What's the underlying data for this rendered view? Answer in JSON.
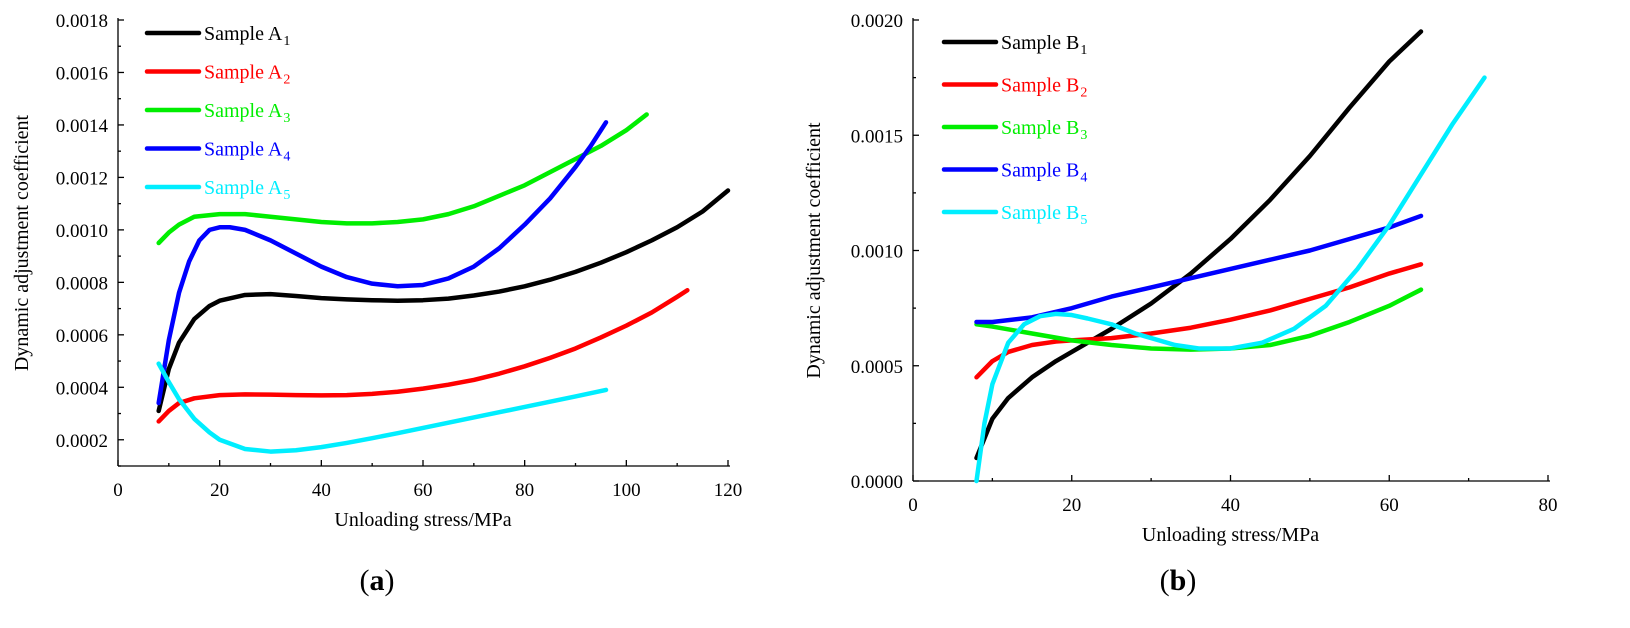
{
  "chart_data": [
    {
      "type": "line",
      "panel_label": "(a)",
      "xlabel": "Unloading stress/MPa",
      "ylabel": "Dynamic adjustment coefficient",
      "xlim": [
        0,
        120
      ],
      "ylim": [
        0.0001,
        0.0018
      ],
      "xticks": [
        0,
        20,
        40,
        60,
        80,
        100,
        120
      ],
      "xtick_labels": [
        "0",
        "20",
        "40",
        "60",
        "80",
        "100",
        "120"
      ],
      "yticks": [
        0.0002,
        0.0004,
        0.0006,
        0.0008,
        0.001,
        0.0012,
        0.0014,
        0.0016,
        0.0018
      ],
      "ytick_labels": [
        "0.0002",
        "0.0004",
        "0.0006",
        "0.0008",
        "0.0010",
        "0.0012",
        "0.0014",
        "0.0016",
        "0.0018"
      ],
      "grid": false,
      "legend_position": "top-left",
      "series": [
        {
          "name": "Sample A",
          "sub": "1",
          "color": "#000000",
          "x": [
            8,
            10,
            12,
            15,
            18,
            20,
            25,
            30,
            35,
            40,
            45,
            50,
            55,
            60,
            65,
            70,
            75,
            80,
            85,
            90,
            95,
            100,
            105,
            110,
            115,
            120
          ],
          "y": [
            0.00031,
            0.00047,
            0.00057,
            0.00066,
            0.00071,
            0.00073,
            0.000752,
            0.000755,
            0.000748,
            0.00074,
            0.000735,
            0.000732,
            0.00073,
            0.000732,
            0.000738,
            0.00075,
            0.000765,
            0.000785,
            0.00081,
            0.00084,
            0.000875,
            0.000915,
            0.00096,
            0.00101,
            0.00107,
            0.00115
          ]
        },
        {
          "name": "Sample A",
          "sub": "2",
          "color": "#ff0000",
          "x": [
            8,
            10,
            12,
            15,
            20,
            25,
            30,
            35,
            40,
            45,
            50,
            55,
            60,
            65,
            70,
            75,
            80,
            85,
            90,
            95,
            100,
            105,
            110,
            112
          ],
          "y": [
            0.00027,
            0.00031,
            0.00034,
            0.000358,
            0.00037,
            0.000373,
            0.000372,
            0.00037,
            0.000369,
            0.00037,
            0.000375,
            0.000383,
            0.000395,
            0.00041,
            0.000428,
            0.000452,
            0.00048,
            0.000512,
            0.000548,
            0.00059,
            0.000635,
            0.000685,
            0.000745,
            0.00077
          ]
        },
        {
          "name": "Sample A",
          "sub": "3",
          "color": "#00ee00",
          "x": [
            8,
            10,
            12,
            15,
            20,
            25,
            30,
            35,
            40,
            45,
            50,
            55,
            60,
            65,
            70,
            75,
            80,
            85,
            90,
            95,
            100,
            104
          ],
          "y": [
            0.00095,
            0.00099,
            0.00102,
            0.00105,
            0.00106,
            0.00106,
            0.00105,
            0.00104,
            0.00103,
            0.001025,
            0.001025,
            0.00103,
            0.00104,
            0.00106,
            0.00109,
            0.00113,
            0.00117,
            0.00122,
            0.00127,
            0.00132,
            0.00138,
            0.00144
          ]
        },
        {
          "name": "Sample A",
          "sub": "4",
          "color": "#0000ff",
          "x": [
            8,
            10,
            12,
            14,
            16,
            18,
            20,
            22,
            25,
            30,
            35,
            40,
            45,
            50,
            55,
            60,
            65,
            70,
            75,
            80,
            85,
            90,
            93,
            96
          ],
          "y": [
            0.00034,
            0.00058,
            0.00076,
            0.00088,
            0.00096,
            0.001,
            0.00101,
            0.00101,
            0.001,
            0.00096,
            0.00091,
            0.00086,
            0.00082,
            0.000795,
            0.000785,
            0.00079,
            0.000815,
            0.00086,
            0.00093,
            0.00102,
            0.00112,
            0.00124,
            0.00132,
            0.00141
          ]
        },
        {
          "name": "Sample A",
          "sub": "5",
          "color": "#00eeff",
          "x": [
            8,
            10,
            12,
            15,
            18,
            20,
            25,
            30,
            35,
            40,
            45,
            50,
            55,
            60,
            65,
            70,
            75,
            80,
            85,
            90,
            96
          ],
          "y": [
            0.00049,
            0.00042,
            0.000355,
            0.00028,
            0.000228,
            0.0002,
            0.000165,
            0.000155,
            0.00016,
            0.000172,
            0.000188,
            0.000206,
            0.000225,
            0.000245,
            0.000265,
            0.000285,
            0.000305,
            0.000325,
            0.000345,
            0.000365,
            0.00039
          ]
        }
      ]
    },
    {
      "type": "line",
      "panel_label": "(b)",
      "xlabel": "Unloading stress/MPa",
      "ylabel": "Dynamic adjustment coefficient",
      "xlim": [
        0,
        80
      ],
      "ylim": [
        0,
        0.002
      ],
      "xticks": [
        0,
        20,
        40,
        60,
        80
      ],
      "xtick_labels": [
        "0",
        "20",
        "40",
        "60",
        "80"
      ],
      "yticks": [
        0,
        0.0005,
        0.001,
        0.0015,
        0.002
      ],
      "ytick_labels": [
        "0.0000",
        "0.0005",
        "0.0010",
        "0.0015",
        "0.0020"
      ],
      "grid": false,
      "legend_position": "top-left",
      "series": [
        {
          "name": "Sample B",
          "sub": "1",
          "color": "#000000",
          "x": [
            8,
            10,
            12,
            15,
            18,
            20,
            25,
            30,
            35,
            40,
            45,
            50,
            55,
            60,
            64
          ],
          "y": [
            0.0001,
            0.00027,
            0.00036,
            0.00045,
            0.00052,
            0.00056,
            0.00066,
            0.00077,
            0.0009,
            0.00105,
            0.00122,
            0.00141,
            0.00162,
            0.00182,
            0.00195
          ]
        },
        {
          "name": "Sample B",
          "sub": "2",
          "color": "#ff0000",
          "x": [
            8,
            10,
            12,
            15,
            18,
            20,
            25,
            30,
            35,
            40,
            45,
            50,
            55,
            60,
            64
          ],
          "y": [
            0.00045,
            0.00052,
            0.00056,
            0.00059,
            0.000605,
            0.00061,
            0.00062,
            0.00064,
            0.000665,
            0.0007,
            0.00074,
            0.00079,
            0.00084,
            0.0009,
            0.00094
          ]
        },
        {
          "name": "Sample B",
          "sub": "3",
          "color": "#00ee00",
          "x": [
            8,
            10,
            15,
            20,
            25,
            30,
            35,
            40,
            45,
            50,
            55,
            60,
            64
          ],
          "y": [
            0.00068,
            0.00067,
            0.00064,
            0.00061,
            0.00059,
            0.000575,
            0.00057,
            0.000575,
            0.00059,
            0.00063,
            0.00069,
            0.00076,
            0.00083
          ]
        },
        {
          "name": "Sample B",
          "sub": "4",
          "color": "#0000ff",
          "x": [
            8,
            10,
            15,
            20,
            25,
            30,
            35,
            40,
            45,
            50,
            55,
            60,
            64
          ],
          "y": [
            0.00069,
            0.00069,
            0.00071,
            0.00075,
            0.0008,
            0.00084,
            0.00088,
            0.00092,
            0.00096,
            0.001,
            0.00105,
            0.0011,
            0.00115
          ]
        },
        {
          "name": "Sample B",
          "sub": "5",
          "color": "#00eeff",
          "x": [
            8,
            9,
            10,
            12,
            14,
            16,
            18,
            20,
            22,
            25,
            28,
            30,
            33,
            36,
            40,
            44,
            48,
            52,
            56,
            60,
            64,
            68,
            72
          ],
          "y": [
            0.0,
            0.00025,
            0.00042,
            0.0006,
            0.00068,
            0.000715,
            0.000725,
            0.00072,
            0.000705,
            0.00068,
            0.00064,
            0.00062,
            0.00059,
            0.000575,
            0.000575,
            0.0006,
            0.00066,
            0.00076,
            0.00092,
            0.00111,
            0.00133,
            0.00155,
            0.00175
          ]
        }
      ]
    }
  ]
}
